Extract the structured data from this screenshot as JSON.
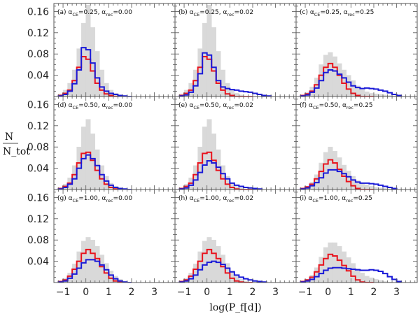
{
  "chart_data": {
    "type": "step-histogram-grid",
    "xlabel": "log(P_f[d])",
    "ylabel": {
      "numerator": "N",
      "denominator": "N_tot"
    },
    "xlim": [
      -1.4,
      3.9
    ],
    "ylim": [
      0,
      0.175
    ],
    "xticks": [
      -1,
      0,
      1,
      2,
      3
    ],
    "xtick_labels": [
      "−1",
      "0",
      "1",
      "2",
      "3"
    ],
    "yticks": [
      0.04,
      0.08,
      0.12,
      0.16
    ],
    "ytick_labels": [
      "0.04",
      "0.08",
      "0.12",
      "0.16"
    ],
    "bin_edges_start": -1.2,
    "bin_width": 0.2,
    "colors": {
      "gray": "#d9d9d9",
      "red": "#e8141e",
      "blue": "#1a1ad8"
    },
    "panels": [
      {
        "id": "a",
        "alpha_ce": "0.25",
        "alpha_rec": "0.00",
        "gray": [
          0.005,
          0.012,
          0.025,
          0.05,
          0.09,
          0.138,
          0.172,
          0.13,
          0.085,
          0.05,
          0.025,
          0.012,
          0.006,
          0.003,
          0.001,
          0.0005
        ],
        "red": [
          0.002,
          0.006,
          0.012,
          0.03,
          0.055,
          0.075,
          0.07,
          0.048,
          0.025,
          0.012,
          0.005,
          0.002,
          0,
          0,
          0,
          0
        ],
        "blue": [
          0.001,
          0.004,
          0.01,
          0.024,
          0.05,
          0.092,
          0.088,
          0.063,
          0.035,
          0.018,
          0.01,
          0.006,
          0.004,
          0.002,
          0.001,
          0
        ]
      },
      {
        "id": "b",
        "alpha_ce": "0.25",
        "alpha_rec": "0.02",
        "gray": [
          0.005,
          0.012,
          0.025,
          0.05,
          0.09,
          0.138,
          0.172,
          0.13,
          0.085,
          0.05,
          0.025,
          0.012,
          0.006,
          0.003,
          0.001,
          0.0005
        ],
        "red": [
          0.002,
          0.006,
          0.012,
          0.03,
          0.055,
          0.075,
          0.07,
          0.048,
          0.025,
          0.012,
          0.005,
          0.002,
          0,
          0,
          0,
          0
        ],
        "blue": [
          0.001,
          0.003,
          0.008,
          0.02,
          0.043,
          0.082,
          0.078,
          0.055,
          0.03,
          0.018,
          0.015,
          0.013,
          0.012,
          0.01,
          0.009,
          0.008,
          0.006,
          0.004,
          0.002,
          0.001
        ]
      },
      {
        "id": "c",
        "alpha_ce": "0.25",
        "alpha_rec": "0.25",
        "gray": [
          0.003,
          0.008,
          0.018,
          0.035,
          0.06,
          0.078,
          0.083,
          0.075,
          0.062,
          0.05,
          0.04,
          0.03,
          0.02,
          0.013,
          0.009,
          0.006,
          0.005,
          0.004,
          0.003,
          0.002,
          0.001
        ],
        "red": [
          0.002,
          0.005,
          0.01,
          0.022,
          0.04,
          0.055,
          0.062,
          0.055,
          0.04,
          0.025,
          0.014,
          0.006,
          0.002,
          0,
          0,
          0
        ],
        "blue": [
          0.001,
          0.003,
          0.008,
          0.016,
          0.03,
          0.045,
          0.05,
          0.048,
          0.042,
          0.035,
          0.027,
          0.02,
          0.017,
          0.015,
          0.016,
          0.015,
          0.014,
          0.012,
          0.01,
          0.007,
          0.004,
          0.002
        ]
      },
      {
        "id": "d",
        "alpha_ce": "0.50",
        "alpha_rec": "0.00",
        "gray": [
          0.003,
          0.01,
          0.022,
          0.045,
          0.08,
          0.118,
          0.132,
          0.105,
          0.075,
          0.045,
          0.025,
          0.012,
          0.006,
          0.003,
          0.001,
          0.0005
        ],
        "red": [
          0.002,
          0.006,
          0.012,
          0.028,
          0.05,
          0.068,
          0.07,
          0.055,
          0.036,
          0.02,
          0.01,
          0.004,
          0.001,
          0,
          0,
          0
        ],
        "blue": [
          0.001,
          0.004,
          0.01,
          0.02,
          0.04,
          0.058,
          0.065,
          0.058,
          0.045,
          0.028,
          0.016,
          0.008,
          0.004,
          0.002,
          0.001,
          0
        ]
      },
      {
        "id": "e",
        "alpha_ce": "0.50",
        "alpha_rec": "0.02",
        "gray": [
          0.003,
          0.01,
          0.022,
          0.045,
          0.08,
          0.118,
          0.132,
          0.105,
          0.075,
          0.045,
          0.025,
          0.012,
          0.006,
          0.003,
          0.001,
          0.0005
        ],
        "red": [
          0.002,
          0.006,
          0.012,
          0.028,
          0.05,
          0.068,
          0.07,
          0.055,
          0.036,
          0.02,
          0.01,
          0.004,
          0.001,
          0,
          0,
          0
        ],
        "blue": [
          0.001,
          0.003,
          0.008,
          0.018,
          0.032,
          0.046,
          0.054,
          0.05,
          0.042,
          0.03,
          0.02,
          0.012,
          0.008,
          0.006,
          0.004,
          0.003,
          0.002,
          0.001
        ]
      },
      {
        "id": "f",
        "alpha_ce": "0.50",
        "alpha_rec": "0.25",
        "gray": [
          0.002,
          0.006,
          0.014,
          0.028,
          0.05,
          0.07,
          0.08,
          0.072,
          0.06,
          0.046,
          0.035,
          0.025,
          0.017,
          0.012,
          0.009,
          0.006,
          0.004,
          0.003,
          0.002,
          0.001
        ],
        "red": [
          0.002,
          0.005,
          0.01,
          0.02,
          0.034,
          0.048,
          0.056,
          0.05,
          0.038,
          0.025,
          0.015,
          0.007,
          0.002,
          0,
          0,
          0
        ],
        "blue": [
          0.001,
          0.003,
          0.007,
          0.013,
          0.022,
          0.031,
          0.037,
          0.037,
          0.034,
          0.03,
          0.024,
          0.018,
          0.014,
          0.012,
          0.012,
          0.011,
          0.01,
          0.008,
          0.006,
          0.004,
          0.002
        ]
      },
      {
        "id": "g",
        "alpha_ce": "1.00",
        "alpha_rec": "0.00",
        "gray": [
          0.003,
          0.008,
          0.018,
          0.035,
          0.058,
          0.078,
          0.085,
          0.08,
          0.068,
          0.052,
          0.036,
          0.022,
          0.012,
          0.006,
          0.003,
          0.001
        ],
        "red": [
          0.002,
          0.005,
          0.012,
          0.025,
          0.04,
          0.055,
          0.062,
          0.055,
          0.045,
          0.03,
          0.018,
          0.008,
          0.003,
          0.001,
          0,
          0
        ],
        "blue": [
          0.001,
          0.003,
          0.008,
          0.016,
          0.027,
          0.037,
          0.043,
          0.043,
          0.04,
          0.033,
          0.024,
          0.014,
          0.007,
          0.003,
          0.001,
          0
        ]
      },
      {
        "id": "h",
        "alpha_ce": "1.00",
        "alpha_rec": "0.02",
        "gray": [
          0.003,
          0.008,
          0.018,
          0.035,
          0.058,
          0.078,
          0.085,
          0.08,
          0.068,
          0.052,
          0.036,
          0.022,
          0.012,
          0.006,
          0.003,
          0.001
        ],
        "red": [
          0.002,
          0.005,
          0.012,
          0.025,
          0.04,
          0.055,
          0.062,
          0.055,
          0.045,
          0.03,
          0.018,
          0.008,
          0.003,
          0.001,
          0,
          0
        ],
        "blue": [
          0.001,
          0.003,
          0.007,
          0.014,
          0.024,
          0.033,
          0.038,
          0.04,
          0.038,
          0.034,
          0.027,
          0.02,
          0.014,
          0.01,
          0.007,
          0.005,
          0.003,
          0.002,
          0.001
        ]
      },
      {
        "id": "i",
        "alpha_ce": "1.00",
        "alpha_rec": "0.25",
        "gray": [
          0.002,
          0.006,
          0.014,
          0.028,
          0.048,
          0.066,
          0.075,
          0.075,
          0.068,
          0.058,
          0.047,
          0.036,
          0.026,
          0.018,
          0.012,
          0.009,
          0.006,
          0.004,
          0.002,
          0.001
        ],
        "red": [
          0.002,
          0.005,
          0.01,
          0.02,
          0.033,
          0.045,
          0.053,
          0.05,
          0.042,
          0.032,
          0.022,
          0.012,
          0.005,
          0.001,
          0,
          0
        ],
        "blue": [
          0.001,
          0.003,
          0.006,
          0.011,
          0.017,
          0.023,
          0.027,
          0.028,
          0.028,
          0.027,
          0.026,
          0.025,
          0.024,
          0.023,
          0.023,
          0.024,
          0.023,
          0.021,
          0.017,
          0.011,
          0.006,
          0.002
        ]
      }
    ]
  }
}
